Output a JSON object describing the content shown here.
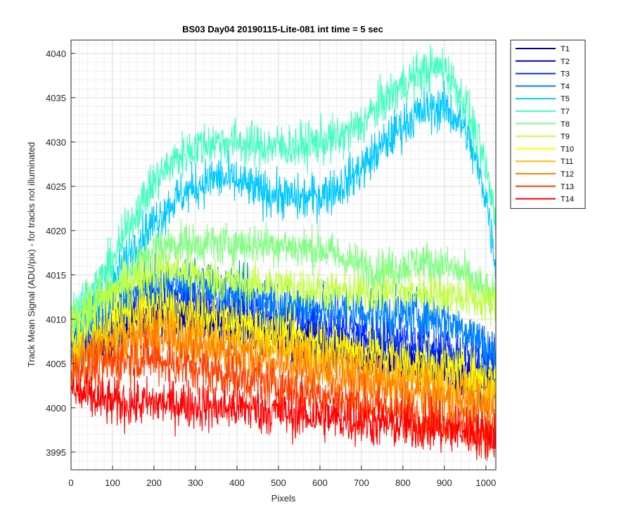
{
  "chart_data": {
    "type": "line",
    "title": "BS03 Day04 20190115-Lite-081 int time = 5 sec",
    "xlabel": "Pixels",
    "ylabel": "Track Mean Signal (ADU/pix) - for tracks not illuminated",
    "xlim": [
      0,
      1024
    ],
    "ylim": [
      3993,
      4041.5
    ],
    "xticks": [
      0,
      100,
      200,
      300,
      400,
      500,
      600,
      700,
      800,
      900,
      1000
    ],
    "yticks": [
      3995,
      4000,
      4005,
      4010,
      4015,
      4020,
      4025,
      4030,
      4035,
      4040
    ],
    "grid": "major and minor",
    "legend_position": "outside-top-right",
    "x_anchor_points": [
      0,
      50,
      100,
      150,
      200,
      250,
      300,
      350,
      400,
      450,
      500,
      550,
      600,
      650,
      700,
      750,
      800,
      850,
      900,
      950,
      1000,
      1024
    ],
    "series": [
      {
        "name": "T1",
        "color": "#00008f",
        "noise": 1.3,
        "values": [
          4006,
          4007,
          4008,
          4009.5,
          4010.5,
          4010.5,
          4010,
          4009.5,
          4009,
          4008.5,
          4008,
          4007.5,
          4007,
          4006.5,
          4006,
          4005.5,
          4005,
          4004.5,
          4004,
          4003.5,
          4003,
          4002.5
        ]
      },
      {
        "name": "T2",
        "color": "#0000c8",
        "noise": 1.4,
        "values": [
          4006.5,
          4007.5,
          4008.5,
          4010,
          4011,
          4011,
          4010.5,
          4010,
          4009.5,
          4009,
          4008.5,
          4008,
          4007.5,
          4007,
          4006.5,
          4006,
          4005.5,
          4005,
          4004.5,
          4004,
          4003.5,
          4003
        ]
      },
      {
        "name": "T3",
        "color": "#0030ff",
        "noise": 1.5,
        "values": [
          4007,
          4008.5,
          4010,
          4012,
          4013,
          4013,
          4012.5,
          4012,
          4011.5,
          4011,
          4010.5,
          4010,
          4009.5,
          4009,
          4008.5,
          4008,
          4007.5,
          4007,
          4006.5,
          4006,
          4005.5,
          4005
        ]
      },
      {
        "name": "T4",
        "color": "#0080ff",
        "noise": 1.4,
        "values": [
          4008,
          4009.5,
          4011,
          4012.5,
          4013.5,
          4014,
          4014,
          4013.5,
          4013,
          4012.5,
          4012,
          4011.5,
          4011.2,
          4011,
          4011,
          4010.8,
          4010.5,
          4010.5,
          4010,
          4009,
          4007,
          4005.5
        ]
      },
      {
        "name": "T5",
        "color": "#00c8ff",
        "noise": 1.3,
        "values": [
          4009,
          4011,
          4014,
          4018,
          4021,
          4023.5,
          4025,
          4026,
          4025.5,
          4024.5,
          4024,
          4023.5,
          4024,
          4025,
          4027,
          4029.5,
          4032,
          4033.5,
          4034,
          4031.5,
          4024,
          4016
        ]
      },
      {
        "name": "T7",
        "color": "#40ffbf",
        "noise": 1.3,
        "values": [
          4011,
          4013,
          4016.5,
          4021.5,
          4025.5,
          4028,
          4029.5,
          4030,
          4030,
          4029.5,
          4029.5,
          4029.5,
          4030,
          4030.5,
          4032,
          4034.5,
          4036.5,
          4038,
          4038.5,
          4034.5,
          4027,
          4021
        ]
      },
      {
        "name": "T8",
        "color": "#80ff80",
        "noise": 1.2,
        "values": [
          4010,
          4011.5,
          4013.5,
          4016,
          4018,
          4018.5,
          4018.5,
          4018.5,
          4018.5,
          4018.5,
          4018.5,
          4018,
          4018,
          4017,
          4016,
          4015.5,
          4016,
          4016.5,
          4016,
          4015,
          4013,
          4012
        ]
      },
      {
        "name": "T9",
        "color": "#bfff40",
        "noise": 1.2,
        "values": [
          4010,
          4011.5,
          4013,
          4014.5,
          4015.5,
          4015.5,
          4015,
          4014.5,
          4014,
          4014,
          4013.8,
          4013.5,
          4013.3,
          4013,
          4013,
          4013,
          4013,
          4013,
          4012.8,
          4012.5,
          4012,
          4011.5
        ]
      },
      {
        "name": "T10",
        "color": "#ffff00",
        "noise": 1.4,
        "values": [
          4007.5,
          4008.5,
          4010,
          4011,
          4011.5,
          4011,
          4010.5,
          4010,
          4009.5,
          4009,
          4008.5,
          4008,
          4007.5,
          4007,
          4006.5,
          4006,
          4005.5,
          4005,
          4004.5,
          4004,
          4003.5,
          4003
        ]
      },
      {
        "name": "T11",
        "color": "#ffbf00",
        "noise": 1.4,
        "values": [
          4006,
          4007,
          4008,
          4009,
          4009.5,
          4009,
          4008.5,
          4008,
          4007.5,
          4007,
          4006.5,
          4006,
          4005.5,
          4005,
          4004.5,
          4004,
          4003.5,
          4003,
          4002.5,
          4002,
          4001.5,
          4001
        ]
      },
      {
        "name": "T12",
        "color": "#ff8000",
        "noise": 1.4,
        "values": [
          4005,
          4006,
          4006.8,
          4007.5,
          4007.8,
          4007.5,
          4007,
          4006.5,
          4006,
          4005.5,
          4005,
          4004.5,
          4004,
          4003.5,
          4003,
          4002.5,
          4002,
          4001.5,
          4001,
          4000.5,
          4000,
          3999.5
        ]
      },
      {
        "name": "T13",
        "color": "#ff4000",
        "noise": 1.4,
        "values": [
          4004,
          4004.5,
          4005,
          4005.5,
          4005.5,
          4005,
          4004.5,
          4004,
          4003.5,
          4003,
          4002.5,
          4002,
          4001.5,
          4001,
          4000.5,
          4000,
          3999.5,
          3999,
          3998.5,
          3998,
          3997.5,
          3997
        ]
      },
      {
        "name": "T14",
        "color": "#ff0000",
        "noise": 1.4,
        "values": [
          4002,
          4001,
          4000.5,
          4000.5,
          4000.5,
          4000.5,
          4000.3,
          4000,
          4000,
          3999.8,
          3999.5,
          3999.2,
          3999,
          3998.8,
          3998.5,
          3998.2,
          3998,
          3997.8,
          3997.5,
          3997.3,
          3997,
          3996.8
        ]
      }
    ]
  }
}
